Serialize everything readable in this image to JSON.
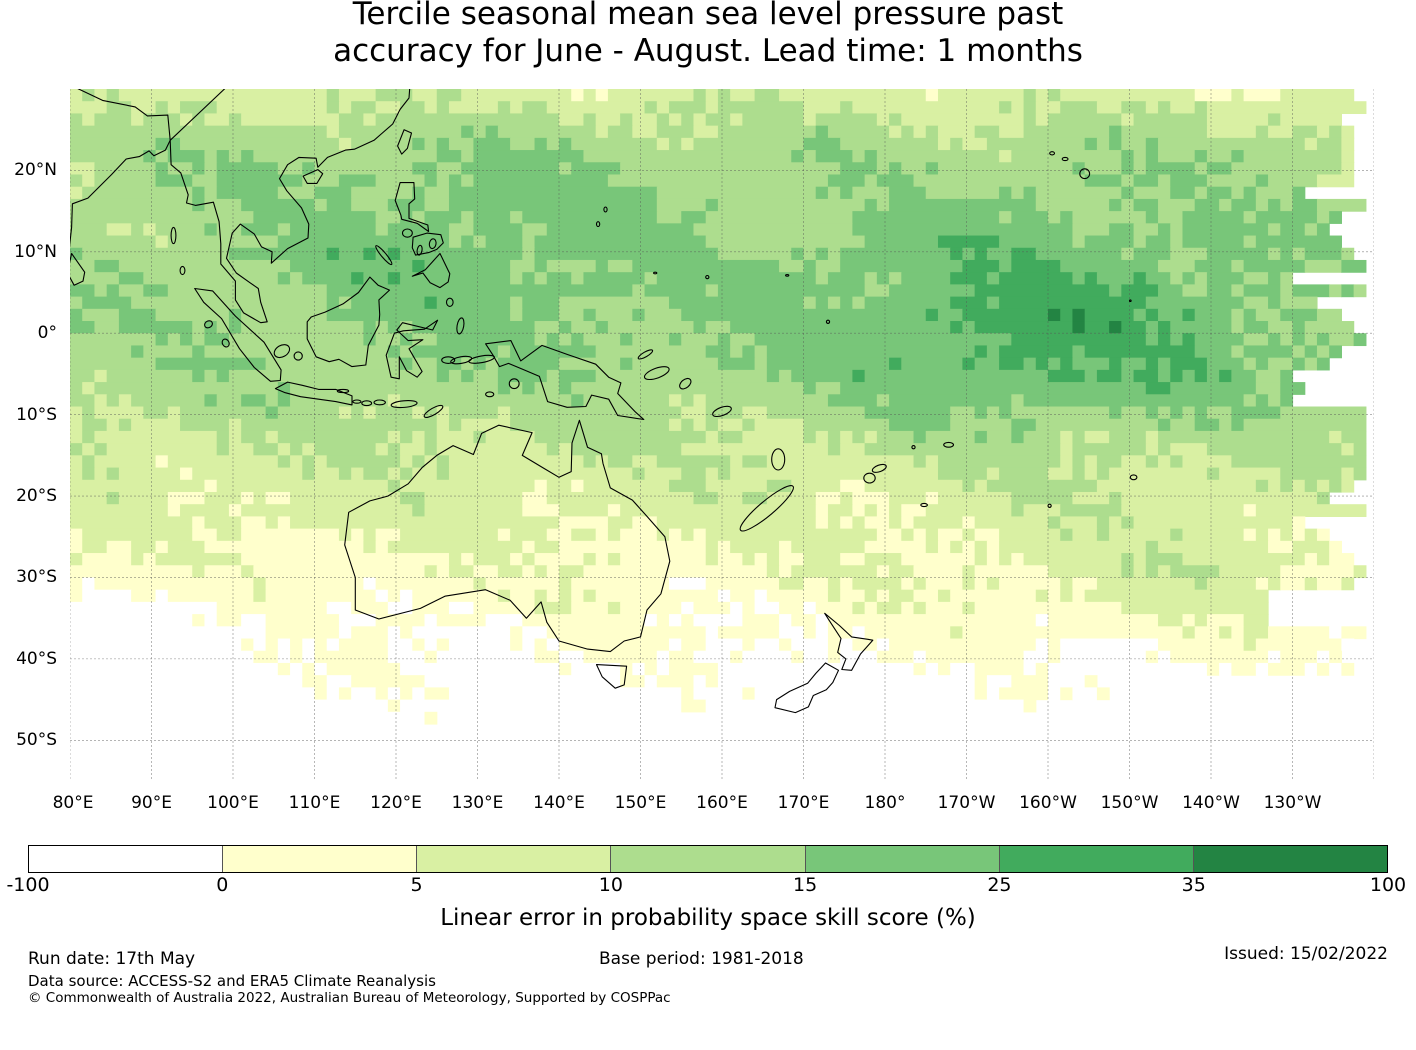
{
  "title": {
    "line1": "Tercile seasonal mean sea level pressure past",
    "line2": "accuracy for June - August. Lead time: 1 months"
  },
  "map": {
    "extent": {
      "lon": [
        80,
        240
      ],
      "lat": [
        -55,
        30
      ]
    },
    "longitude_labels": [
      "80°E",
      "90°E",
      "100°E",
      "110°E",
      "120°E",
      "130°E",
      "140°E",
      "150°E",
      "160°E",
      "170°E",
      "180°",
      "170°W",
      "160°W",
      "150°W",
      "140°W",
      "130°W"
    ],
    "latitude_labels": [
      "20°N",
      "10°N",
      "0°",
      "10°S",
      "20°S",
      "30°S",
      "40°S",
      "50°S"
    ],
    "gridlines": true,
    "coastline_color": "#000000"
  },
  "colorbar": {
    "ticks": [
      "-100",
      "0",
      "5",
      "10",
      "15",
      "25",
      "35",
      "100"
    ],
    "colors": [
      "#ffffff",
      "#ffffcc",
      "#d9f0a3",
      "#addd8e",
      "#78c679",
      "#41ab5d",
      "#238443"
    ],
    "label": "Linear error in probability space skill score (%)"
  },
  "footer": {
    "run_date": "Run date: 17th May",
    "base_period": "Base period: 1981-2018",
    "issued": "Issued: 15/02/2022",
    "data_source": "Data source: ACCESS-S2 and ERA5 Climate Reanalysis",
    "copyright": "© Commonwealth of Australia 2022, Australian Bureau of Meteorology, Supported by COSPPac"
  }
}
